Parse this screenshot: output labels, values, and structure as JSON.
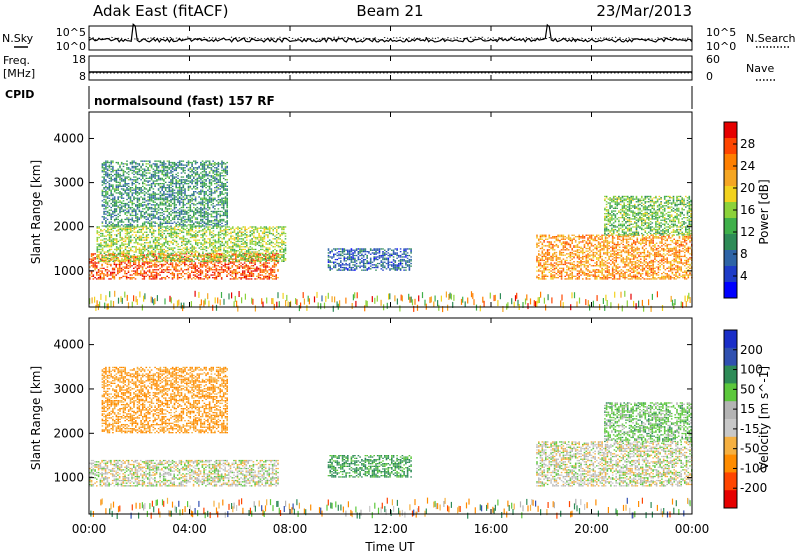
{
  "header": {
    "station": "Adak East (fitACF)",
    "beam": "Beam 21",
    "date": "23/Mar/2013"
  },
  "top_panels": {
    "noise_left_label": "N.Sky",
    "noise_right_label": "N.Search",
    "noise_ticks_left": [
      "10^5",
      "10^0"
    ],
    "noise_ticks_right": [
      "10^5",
      "10^0"
    ],
    "freq_label": "Freq.",
    "freq_unit": "[MHz]",
    "freq_ticks": [
      "18",
      "8"
    ],
    "nave_ticks": [
      "60",
      "0"
    ],
    "nave_label": "Nave",
    "cpid_label": "CPID",
    "cpid_value": "normalsound (fast) 157 RF"
  },
  "axes": {
    "xlabel": "Time UT",
    "ylabel": "Slant Range [km]",
    "xticks": [
      "00:00",
      "04:00",
      "08:00",
      "12:00",
      "16:00",
      "20:00",
      "00:00"
    ],
    "yticks": [
      "1000",
      "2000",
      "3000",
      "4000"
    ]
  },
  "colors": {
    "power": [
      "#0000ff",
      "#1e3cc8",
      "#2e64a6",
      "#2e8b57",
      "#3fb04a",
      "#8cd23a",
      "#f2d21e",
      "#f5a623",
      "#ff7f00",
      "#ff4500",
      "#e60000"
    ],
    "velocity": [
      "#e60000",
      "#ff4500",
      "#ff8c00",
      "#f5b041",
      "#c8c8c8",
      "#b4b4b4",
      "#5cc83c",
      "#2e8b57",
      "#3050b0",
      "#1a2ec8"
    ]
  },
  "chart_data": [
    {
      "type": "heatmap",
      "title": "Power",
      "xlabel": "Time UT",
      "ylabel": "Slant Range [km]",
      "colorbar_label": "Power [dB]",
      "colorbar_ticks": [
        "4",
        "8",
        "12",
        "16",
        "20",
        "24",
        "28"
      ],
      "colorbar_range": [
        0,
        32
      ],
      "xlim": [
        0,
        24
      ],
      "ylim": [
        180,
        4600
      ],
      "echo_regions": [
        {
          "t_start": 0.0,
          "t_end": 7.5,
          "range_start": 800,
          "range_end": 1400,
          "power": 28
        },
        {
          "t_start": 0.3,
          "t_end": 7.8,
          "range_start": 1200,
          "range_end": 2000,
          "power": 16
        },
        {
          "t_start": 0.5,
          "t_end": 5.5,
          "range_start": 2000,
          "range_end": 3500,
          "power": 10
        },
        {
          "t_start": 9.5,
          "t_end": 12.8,
          "range_start": 1000,
          "range_end": 1500,
          "power": 6
        },
        {
          "t_start": 17.8,
          "t_end": 24.0,
          "range_start": 800,
          "range_end": 1800,
          "power": 24
        },
        {
          "t_start": 20.5,
          "t_end": 24.0,
          "range_start": 1800,
          "range_end": 2700,
          "power": 14
        }
      ]
    },
    {
      "type": "heatmap",
      "title": "Velocity",
      "xlabel": "Time UT",
      "ylabel": "Slant Range [km]",
      "colorbar_label": "Velocity [m s^-1]",
      "colorbar_ticks": [
        "200",
        "100",
        "50",
        "15",
        "-15",
        "-50",
        "-100",
        "-200"
      ],
      "colorbar_range": [
        -250,
        250
      ],
      "xlim": [
        0,
        24
      ],
      "ylim": [
        180,
        4600
      ],
      "echo_regions": [
        {
          "t_start": 0.0,
          "t_end": 7.5,
          "range_start": 800,
          "range_end": 1400,
          "velocity": 0
        },
        {
          "t_start": 0.5,
          "t_end": 5.5,
          "range_start": 2000,
          "range_end": 3500,
          "velocity": -60
        },
        {
          "t_start": 9.5,
          "t_end": 12.8,
          "range_start": 1000,
          "range_end": 1500,
          "velocity": 60
        },
        {
          "t_start": 17.8,
          "t_end": 24.0,
          "range_start": 800,
          "range_end": 1800,
          "velocity": 0
        },
        {
          "t_start": 20.5,
          "t_end": 24.0,
          "range_start": 1800,
          "range_end": 2700,
          "velocity": 30
        }
      ]
    }
  ]
}
